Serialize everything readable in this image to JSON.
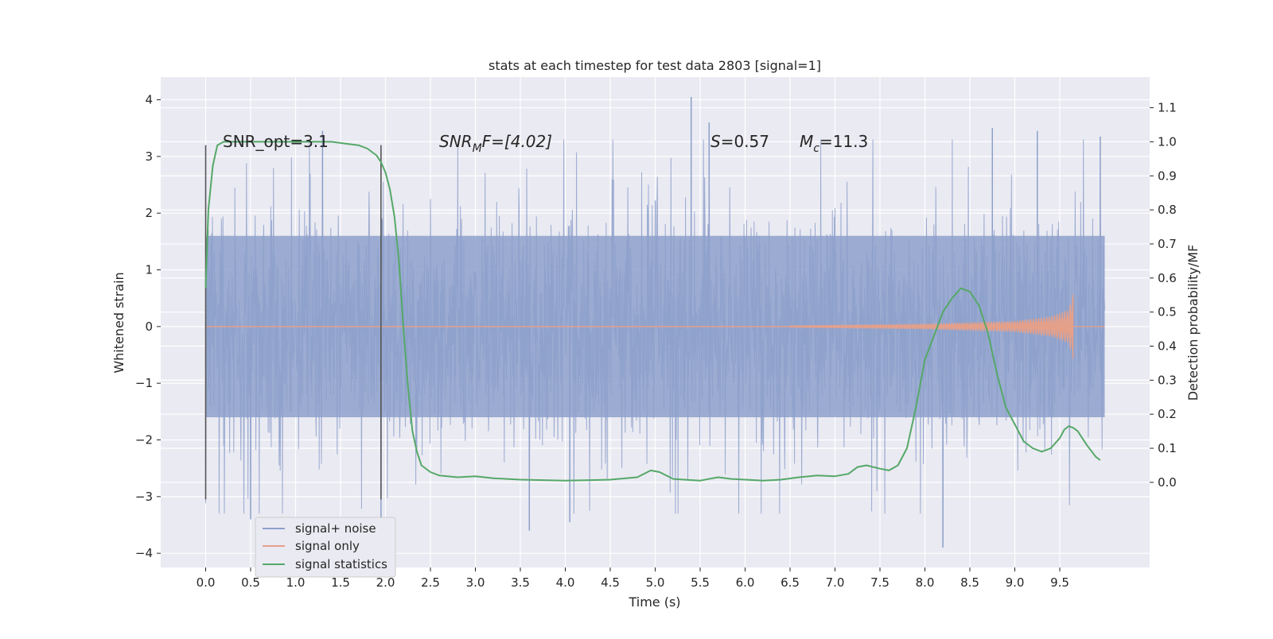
{
  "chart_data": {
    "type": "line",
    "title": "stats at each timestep for test data 2803 [signal=1]",
    "xlabel": "Time (s)",
    "ylabel": "Whitened strain",
    "y2label": "Detection probability/MF",
    "xlim": [
      -0.5,
      10.5
    ],
    "ylim": [
      -4.25,
      4.4
    ],
    "y2lim": [
      -0.25,
      1.19
    ],
    "x_ticks": [
      0.0,
      0.5,
      1.0,
      1.5,
      2.0,
      2.5,
      3.0,
      3.5,
      4.0,
      4.5,
      5.0,
      5.5,
      6.0,
      6.5,
      7.0,
      7.5,
      8.0,
      8.5,
      9.0,
      9.5
    ],
    "x_tick_labels": [
      "0.0",
      "0.5",
      "1.0",
      "1.5",
      "2.0",
      "2.5",
      "3.0",
      "3.5",
      "4.0",
      "4.5",
      "5.0",
      "5.5",
      "6.0",
      "6.5",
      "7.0",
      "7.5",
      "8.0",
      "8.5",
      "9.0",
      "9.5"
    ],
    "y_ticks": [
      -4,
      -3,
      -2,
      -1,
      0,
      1,
      2,
      3,
      4
    ],
    "y_tick_labels": [
      "−4",
      "−3",
      "−2",
      "−1",
      "0",
      "1",
      "2",
      "3",
      "4"
    ],
    "y2_ticks": [
      0.0,
      0.1,
      0.2,
      0.3,
      0.4,
      0.5,
      0.6,
      0.7,
      0.8,
      0.9,
      1.0,
      1.1
    ],
    "y2_tick_labels": [
      "0.0",
      "0.1",
      "0.2",
      "0.3",
      "0.4",
      "0.5",
      "0.6",
      "0.7",
      "0.8",
      "0.9",
      "1.0",
      "1.1"
    ],
    "grid": true,
    "legend_position": "lower-left",
    "series": [
      {
        "name": "signal+ noise",
        "axis": "left",
        "color": "#8da0cb",
        "description_note": "dense whitened noise trace, mostly within [-1.6, 1.6] with spikes to ~±3.5",
        "x": [
          0.0,
          10.0
        ],
        "envelope_core": [
          -1.6,
          1.6
        ],
        "extreme_points": [
          {
            "x": 0.5,
            "y": -3.4
          },
          {
            "x": 1.3,
            "y": 3.45
          },
          {
            "x": 1.95,
            "y": -3.4
          },
          {
            "x": 3.6,
            "y": -3.6
          },
          {
            "x": 4.05,
            "y": -3.45
          },
          {
            "x": 5.4,
            "y": 4.05
          },
          {
            "x": 5.6,
            "y": 3.6
          },
          {
            "x": 8.2,
            "y": -3.9
          },
          {
            "x": 8.75,
            "y": 3.5
          },
          {
            "x": 9.25,
            "y": 3.45
          },
          {
            "x": 9.95,
            "y": 3.35
          }
        ]
      },
      {
        "name": "signal only",
        "axis": "left",
        "color": "#e5a08a",
        "description_note": "chirp signal growing in amplitude, ending near x=9.65",
        "chirp_start": 6.5,
        "chirp_end": 9.65,
        "amplitude_points": [
          {
            "x": 6.5,
            "a": 0.02
          },
          {
            "x": 8.0,
            "a": 0.05
          },
          {
            "x": 9.0,
            "a": 0.1
          },
          {
            "x": 9.4,
            "a": 0.18
          },
          {
            "x": 9.6,
            "a": 0.3
          },
          {
            "x": 9.65,
            "a": 0.6
          }
        ]
      },
      {
        "name": "signal statistics",
        "axis": "right",
        "color": "#55a868",
        "x": [
          0.0,
          0.03,
          0.08,
          0.13,
          0.2,
          0.3,
          0.5,
          0.8,
          1.0,
          1.2,
          1.4,
          1.55,
          1.7,
          1.8,
          1.9,
          1.95,
          2.0,
          2.05,
          2.1,
          2.15,
          2.2,
          2.25,
          2.3,
          2.35,
          2.4,
          2.5,
          2.6,
          2.8,
          3.0,
          3.2,
          3.5,
          4.0,
          4.5,
          4.8,
          4.95,
          5.05,
          5.2,
          5.5,
          5.7,
          5.85,
          6.0,
          6.2,
          6.4,
          6.6,
          6.8,
          7.0,
          7.15,
          7.25,
          7.35,
          7.5,
          7.6,
          7.7,
          7.8,
          7.9,
          8.0,
          8.1,
          8.2,
          8.3,
          8.4,
          8.5,
          8.6,
          8.7,
          8.8,
          8.9,
          9.0,
          9.1,
          9.2,
          9.3,
          9.4,
          9.5,
          9.55,
          9.6,
          9.65,
          9.7,
          9.8,
          9.9,
          9.95
        ],
        "y": [
          0.57,
          0.8,
          0.93,
          0.99,
          1.0,
          1.0,
          1.0,
          1.0,
          1.0,
          1.0,
          1.0,
          0.995,
          0.99,
          0.98,
          0.96,
          0.94,
          0.91,
          0.86,
          0.78,
          0.65,
          0.45,
          0.28,
          0.15,
          0.09,
          0.05,
          0.03,
          0.02,
          0.015,
          0.018,
          0.012,
          0.008,
          0.005,
          0.008,
          0.015,
          0.035,
          0.03,
          0.01,
          0.005,
          0.015,
          0.01,
          0.008,
          0.005,
          0.008,
          0.015,
          0.02,
          0.018,
          0.025,
          0.045,
          0.05,
          0.04,
          0.035,
          0.05,
          0.1,
          0.22,
          0.36,
          0.43,
          0.5,
          0.54,
          0.57,
          0.56,
          0.52,
          0.44,
          0.32,
          0.22,
          0.17,
          0.12,
          0.1,
          0.09,
          0.1,
          0.13,
          0.155,
          0.165,
          0.16,
          0.15,
          0.11,
          0.075,
          0.065
        ]
      }
    ],
    "vertical_lines": [
      {
        "x": 0.0,
        "y_range": [
          -3.05,
          3.2
        ]
      },
      {
        "x": 1.95,
        "y_range": [
          -3.05,
          3.2
        ]
      }
    ],
    "annotations": {
      "snr_opt": "SNR_opt=3.1",
      "snr_mf_main": "SNR",
      "snr_mf_sub": "M",
      "snr_mf_rest": "F=[4.02]",
      "s_main": "S",
      "s_rest": "=0.57",
      "mc_main": "M",
      "mc_sub": "c",
      "mc_rest": "=11.3"
    }
  }
}
